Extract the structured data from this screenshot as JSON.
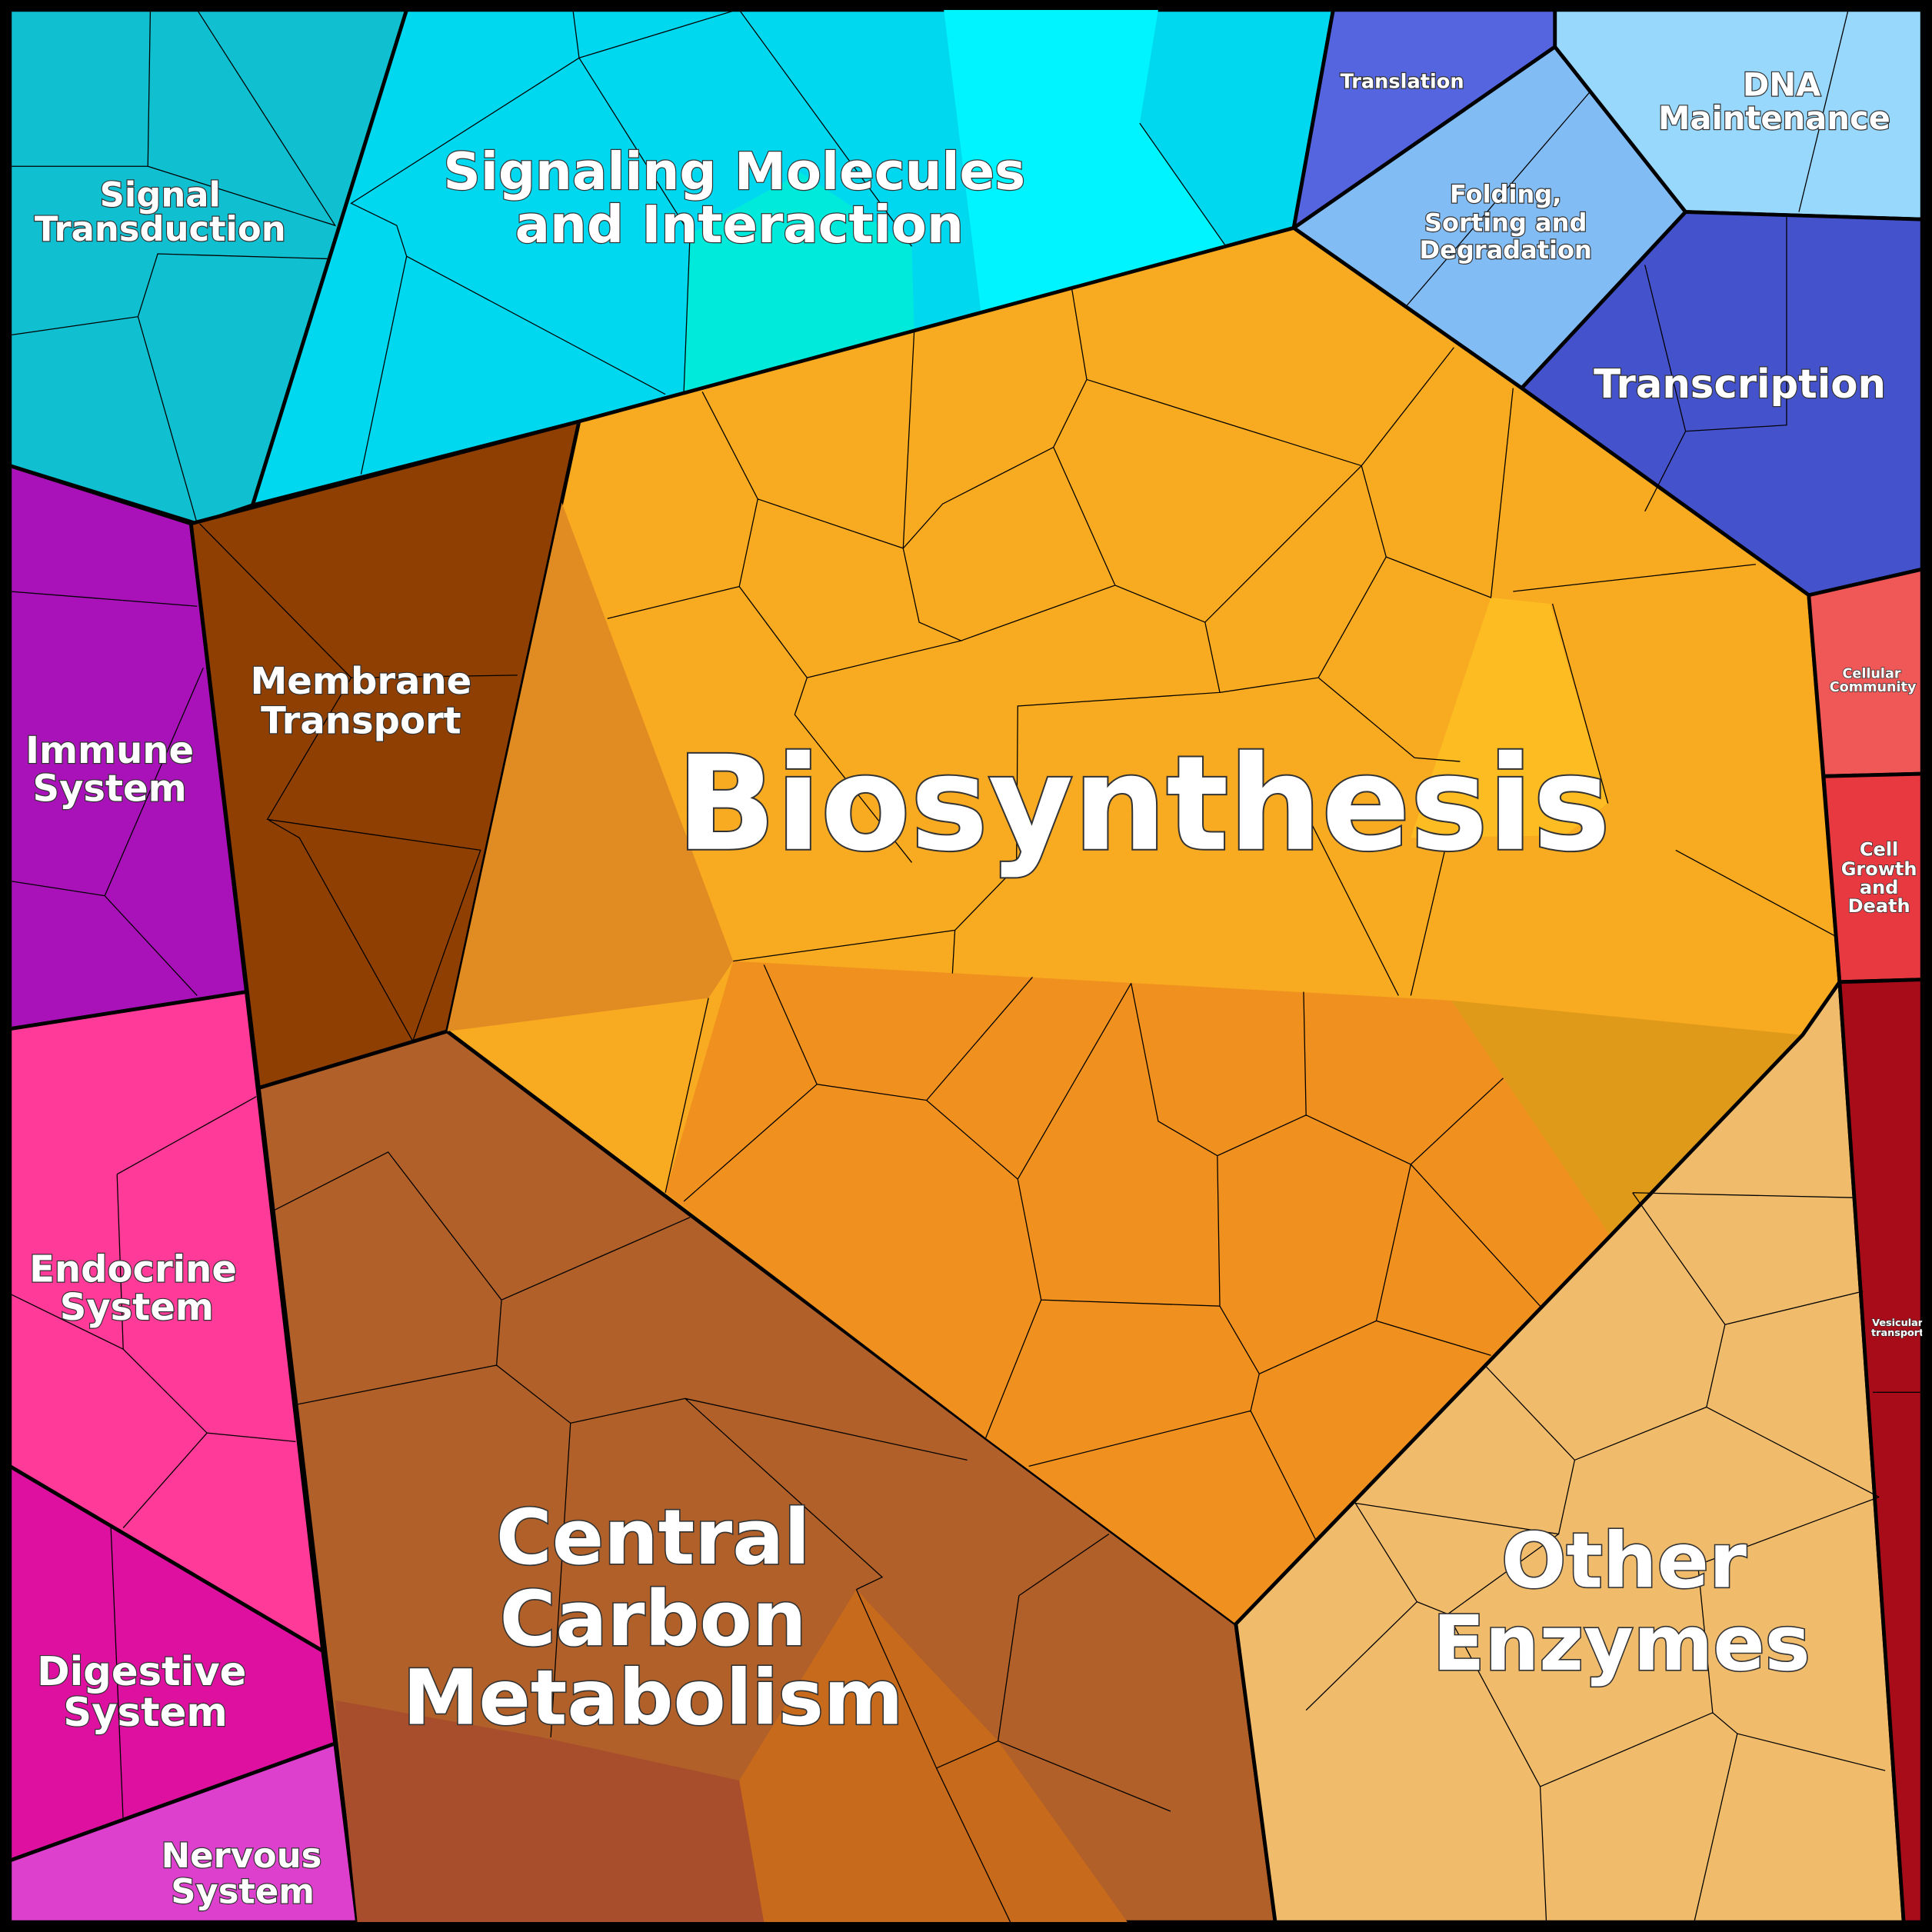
{
  "regions": [
    {
      "label": [
        "Signal",
        "Transduction"
      ]
    },
    {
      "label": [
        "Signaling Molecules",
        "and Interaction"
      ]
    },
    {
      "label": [
        "Translation"
      ]
    },
    {
      "label": [
        "Folding,",
        "Sorting and",
        "Degradation"
      ]
    },
    {
      "label": [
        "DNA",
        "Maintenance"
      ]
    },
    {
      "label": [
        "Transcription"
      ]
    },
    {
      "label": [
        "Immune",
        "System"
      ]
    },
    {
      "label": [
        "Endocrine",
        "System"
      ]
    },
    {
      "label": [
        "Digestive",
        "System"
      ]
    },
    {
      "label": [
        "Nervous",
        "System"
      ]
    },
    {
      "label": [
        "Membrane",
        "Transport"
      ]
    },
    {
      "label": [
        "Biosynthesis"
      ]
    },
    {
      "label": [
        "Central",
        "Carbon",
        "Metabolism"
      ]
    },
    {
      "label": [
        "Other",
        "Enzymes"
      ]
    },
    {
      "label": [
        "Cellular",
        "Community"
      ]
    },
    {
      "label": [
        "Cell",
        "Growth",
        "and",
        "Death"
      ]
    },
    {
      "label": [
        "Vesicular",
        "transport"
      ]
    }
  ]
}
